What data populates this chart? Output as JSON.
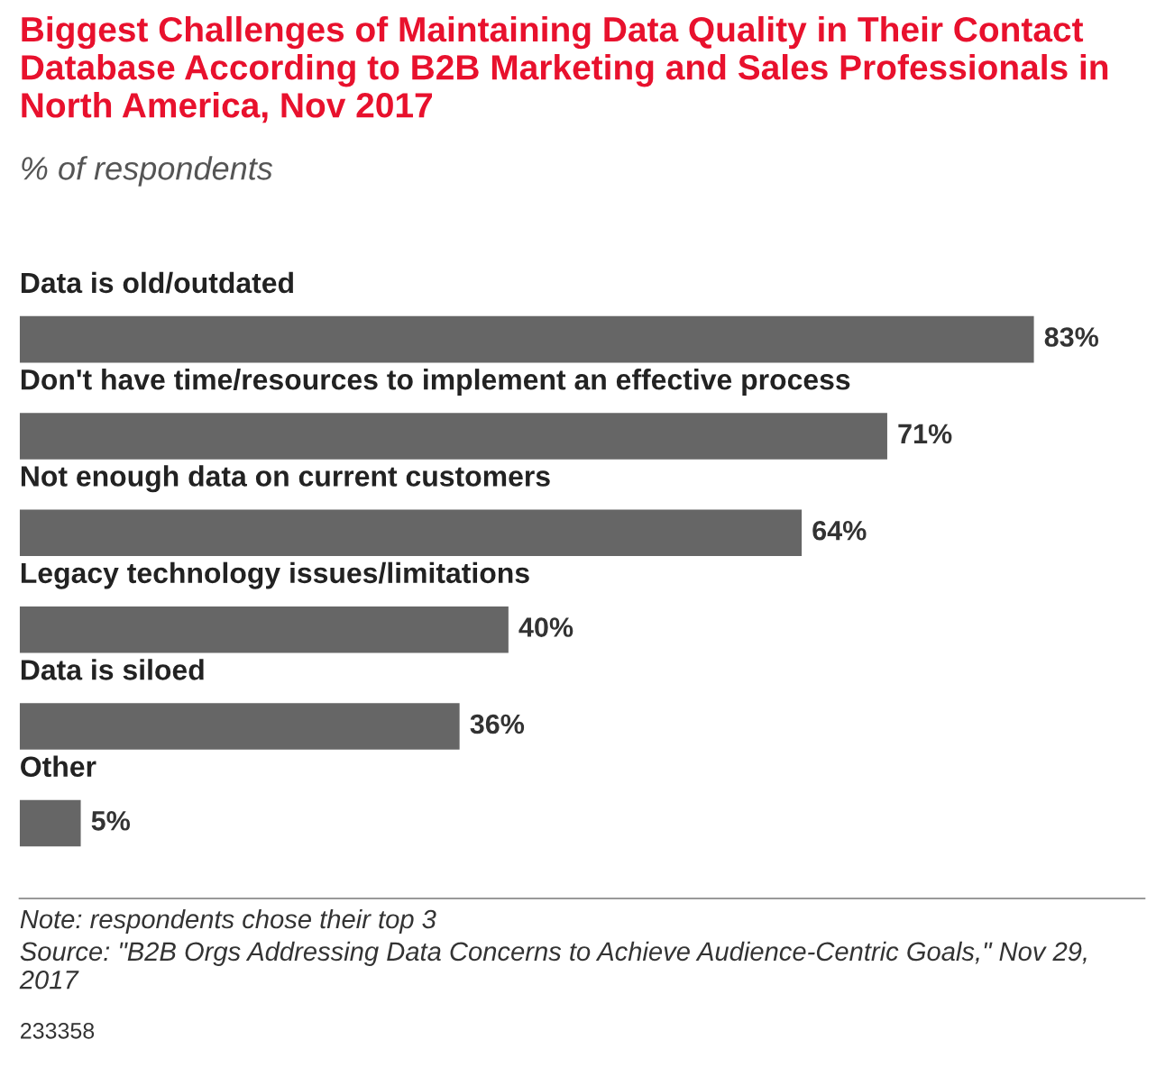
{
  "chart_data": {
    "type": "bar",
    "orientation": "horizontal",
    "title": "Biggest Challenges of Maintaining Data Quality in Their Contact Database According to B2B Marketing and Sales Professionals in North America, Nov 2017",
    "subtitle": "% of respondents",
    "categories": [
      "Data is old/outdated",
      "Don't have time/resources to implement an effective process",
      "Not enough data on current customers",
      "Legacy technology issues/limitations",
      "Data is siloed",
      "Other"
    ],
    "values": [
      83,
      71,
      64,
      40,
      36,
      5
    ],
    "color": "#666666",
    "value_labels": [
      "83%",
      "71%",
      "64%",
      "40%",
      "36%",
      "5%"
    ],
    "annotations": [
      "Note: respondents chose their top 3",
      "Source: \"B2B Orgs Addressing Data Concerns to Achieve Audience-Centric Goals,\" Nov 29, 2017",
      "233358"
    ]
  }
}
